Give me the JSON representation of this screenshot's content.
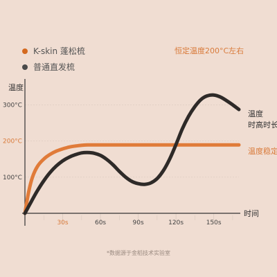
{
  "colors": {
    "background": "#f0ddd2",
    "kskin": "#e07b39",
    "normal": "#2e2a28",
    "axis": "#333333",
    "grid": "#d9c9bf",
    "highlight_text": "#d97a3a"
  },
  "legend": [
    {
      "label": "K-skin 蓬松梳",
      "color": "#d4691f"
    },
    {
      "label": "普通直发梳",
      "color": "#4a4a4a"
    }
  ],
  "top_note": "恒定温度200°C左右",
  "footnote": "*数据源于金稻技术实验室",
  "chart_data": {
    "type": "line",
    "xlabel": "时间",
    "ylabel": "温度",
    "x_ticks": [
      "30s",
      "60s",
      "90s",
      "120s",
      "150s"
    ],
    "y_ticks": [
      "100°C",
      "200°C",
      "300°C"
    ],
    "highlight_x_tick": "30s",
    "highlight_y_tick": "200°C",
    "xlim": [
      0,
      170
    ],
    "ylim": [
      0,
      360
    ],
    "series": [
      {
        "name": "K-skin 蓬松梳",
        "x": [
          0,
          3,
          6,
          10,
          15,
          20,
          25,
          30,
          35,
          40,
          45,
          50,
          60,
          80,
          100,
          120,
          140,
          160,
          170
        ],
        "y": [
          0,
          60,
          100,
          130,
          150,
          163,
          172,
          178,
          183,
          186,
          188,
          189,
          189,
          189,
          189,
          189,
          189,
          189,
          189
        ]
      },
      {
        "name": "普通直发梳",
        "x": [
          0,
          5,
          10,
          15,
          20,
          25,
          30,
          35,
          40,
          45,
          50,
          55,
          60,
          65,
          70,
          75,
          80,
          85,
          90,
          95,
          100,
          105,
          110,
          115,
          120,
          125,
          130,
          135,
          140,
          145,
          150,
          155,
          160,
          165,
          170
        ],
        "y": [
          0,
          32,
          63,
          90,
          113,
          131,
          145,
          155,
          162,
          167,
          168,
          166,
          160,
          149,
          134,
          116,
          100,
          88,
          82,
          80,
          84,
          96,
          118,
          150,
          190,
          233,
          268,
          295,
          315,
          325,
          327,
          322,
          312,
          300,
          287
        ]
      }
    ],
    "annotations": [
      "温度稳定",
      "温度",
      "时高时长"
    ]
  }
}
